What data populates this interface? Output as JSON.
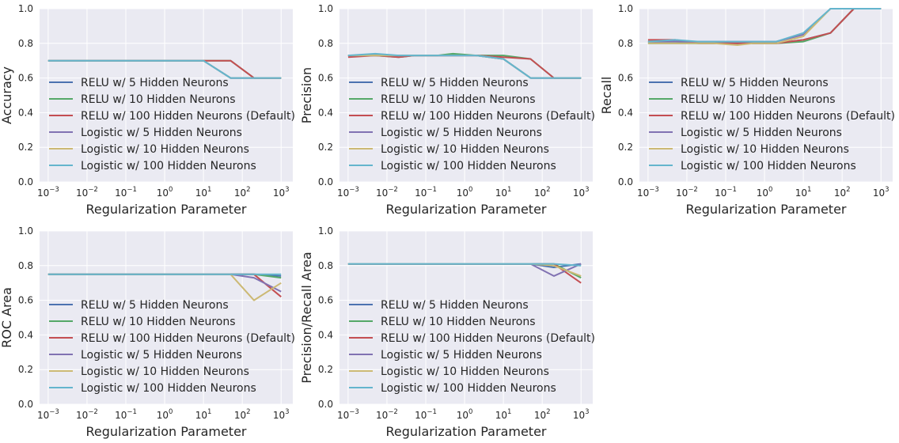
{
  "chart_data": [
    {
      "type": "line",
      "title": "",
      "xlabel": "Regularization Parameter",
      "ylabel": "Accuracy",
      "xscale": "log",
      "xlim": [
        0.0006,
        2000
      ],
      "ylim": [
        0,
        1
      ],
      "x_ticks": [
        "-3",
        "-2",
        "-1",
        "0",
        "1",
        "2",
        "3"
      ],
      "y_ticks": [
        "0.0",
        "0.2",
        "0.4",
        "0.6",
        "0.8",
        "1.0"
      ],
      "grid": true,
      "legend_position": "lower-left",
      "x": [
        0.001,
        0.005,
        0.02,
        0.05,
        0.2,
        0.5,
        2,
        10,
        50,
        200,
        1000
      ],
      "series": [
        {
          "name": "RELU w/ 5 Hidden Neurons",
          "color": "#4C72B0",
          "values": [
            0.7,
            0.7,
            0.7,
            0.7,
            0.7,
            0.7,
            0.7,
            0.7,
            0.6,
            0.6,
            0.6
          ]
        },
        {
          "name": "RELU w/ 10 Hidden Neurons",
          "color": "#55A868",
          "values": [
            0.7,
            0.7,
            0.7,
            0.7,
            0.7,
            0.7,
            0.7,
            0.7,
            0.7,
            0.6,
            0.6
          ]
        },
        {
          "name": "RELU w/ 100 Hidden Neurons (Default)",
          "color": "#C44E52",
          "values": [
            0.7,
            0.7,
            0.7,
            0.7,
            0.7,
            0.7,
            0.7,
            0.7,
            0.7,
            0.6,
            0.6
          ]
        },
        {
          "name": "Logistic w/ 5 Hidden Neurons",
          "color": "#8172B2",
          "values": [
            0.7,
            0.7,
            0.7,
            0.7,
            0.7,
            0.7,
            0.7,
            0.7,
            0.6,
            0.6,
            0.6
          ]
        },
        {
          "name": "Logistic w/ 10 Hidden Neurons",
          "color": "#CCB974",
          "values": [
            0.7,
            0.7,
            0.7,
            0.7,
            0.7,
            0.7,
            0.7,
            0.7,
            0.6,
            0.6,
            0.6
          ]
        },
        {
          "name": "Logistic w/ 100 Hidden Neurons",
          "color": "#64B5CD",
          "values": [
            0.7,
            0.7,
            0.7,
            0.7,
            0.7,
            0.7,
            0.7,
            0.7,
            0.6,
            0.6,
            0.6
          ]
        }
      ]
    },
    {
      "type": "line",
      "title": "",
      "xlabel": "Regularization Parameter",
      "ylabel": "Precision",
      "xscale": "log",
      "xlim": [
        0.0006,
        2000
      ],
      "ylim": [
        0,
        1
      ],
      "x_ticks": [
        "-3",
        "-2",
        "-1",
        "0",
        "1",
        "2",
        "3"
      ],
      "y_ticks": [
        "0.0",
        "0.2",
        "0.4",
        "0.6",
        "0.8",
        "1.0"
      ],
      "grid": true,
      "legend_position": "lower-left",
      "x": [
        0.001,
        0.005,
        0.02,
        0.05,
        0.2,
        0.5,
        2,
        10,
        50,
        200,
        1000
      ],
      "series": [
        {
          "name": "RELU w/ 5 Hidden Neurons",
          "color": "#4C72B0",
          "values": [
            0.73,
            0.73,
            0.73,
            0.73,
            0.73,
            0.73,
            0.73,
            0.71,
            0.6,
            0.6,
            0.6
          ]
        },
        {
          "name": "RELU w/ 10 Hidden Neurons",
          "color": "#55A868",
          "values": [
            0.73,
            0.73,
            0.72,
            0.73,
            0.73,
            0.74,
            0.73,
            0.73,
            0.71,
            0.6,
            0.6
          ]
        },
        {
          "name": "RELU w/ 100 Hidden Neurons (Default)",
          "color": "#C44E52",
          "values": [
            0.72,
            0.73,
            0.72,
            0.73,
            0.73,
            0.73,
            0.73,
            0.72,
            0.71,
            0.6,
            0.6
          ]
        },
        {
          "name": "Logistic w/ 5 Hidden Neurons",
          "color": "#8172B2",
          "values": [
            0.73,
            0.73,
            0.73,
            0.73,
            0.73,
            0.73,
            0.73,
            0.71,
            0.6,
            0.6,
            0.6
          ]
        },
        {
          "name": "Logistic w/ 10 Hidden Neurons",
          "color": "#CCB974",
          "values": [
            0.73,
            0.73,
            0.73,
            0.73,
            0.73,
            0.73,
            0.73,
            0.71,
            0.6,
            0.6,
            0.6
          ]
        },
        {
          "name": "Logistic w/ 100 Hidden Neurons",
          "color": "#64B5CD",
          "values": [
            0.73,
            0.74,
            0.73,
            0.73,
            0.73,
            0.73,
            0.73,
            0.71,
            0.6,
            0.6,
            0.6
          ]
        }
      ]
    },
    {
      "type": "line",
      "title": "",
      "xlabel": "Regularization Parameter",
      "ylabel": "Recall",
      "xscale": "log",
      "xlim": [
        0.0006,
        2000
      ],
      "ylim": [
        0,
        1
      ],
      "x_ticks": [
        "-3",
        "-2",
        "-1",
        "0",
        "1",
        "2",
        "3"
      ],
      "y_ticks": [
        "0.0",
        "0.2",
        "0.4",
        "0.6",
        "0.8",
        "1.0"
      ],
      "grid": true,
      "legend_position": "lower-left",
      "x": [
        0.001,
        0.005,
        0.02,
        0.05,
        0.2,
        0.5,
        2,
        10,
        50,
        200,
        1000
      ],
      "series": [
        {
          "name": "RELU w/ 5 Hidden Neurons",
          "color": "#4C72B0",
          "values": [
            0.81,
            0.81,
            0.8,
            0.8,
            0.8,
            0.8,
            0.8,
            0.82,
            0.86,
            1.0,
            1.0
          ]
        },
        {
          "name": "RELU w/ 10 Hidden Neurons",
          "color": "#55A868",
          "values": [
            0.8,
            0.8,
            0.8,
            0.8,
            0.8,
            0.8,
            0.8,
            0.81,
            0.86,
            1.0,
            1.0
          ]
        },
        {
          "name": "RELU w/ 100 Hidden Neurons (Default)",
          "color": "#C44E52",
          "values": [
            0.82,
            0.82,
            0.8,
            0.8,
            0.8,
            0.8,
            0.8,
            0.82,
            0.86,
            1.0,
            1.0
          ]
        },
        {
          "name": "Logistic w/ 5 Hidden Neurons",
          "color": "#8172B2",
          "values": [
            0.81,
            0.81,
            0.81,
            0.81,
            0.81,
            0.81,
            0.81,
            0.85,
            1.0,
            1.0,
            1.0
          ]
        },
        {
          "name": "Logistic w/ 10 Hidden Neurons",
          "color": "#CCB974",
          "values": [
            0.8,
            0.8,
            0.8,
            0.8,
            0.79,
            0.8,
            0.8,
            0.84,
            1.0,
            1.0,
            1.0
          ]
        },
        {
          "name": "Logistic w/ 100 Hidden Neurons",
          "color": "#64B5CD",
          "values": [
            0.81,
            0.82,
            0.81,
            0.81,
            0.81,
            0.81,
            0.81,
            0.86,
            1.0,
            1.0,
            1.0
          ]
        }
      ]
    },
    {
      "type": "line",
      "title": "",
      "xlabel": "Regularization Parameter",
      "ylabel": "ROC Area",
      "xscale": "log",
      "xlim": [
        0.0006,
        2000
      ],
      "ylim": [
        0,
        1
      ],
      "x_ticks": [
        "-3",
        "-2",
        "-1",
        "0",
        "1",
        "2",
        "3"
      ],
      "y_ticks": [
        "0.0",
        "0.2",
        "0.4",
        "0.6",
        "0.8",
        "1.0"
      ],
      "grid": true,
      "legend_position": "lower-left",
      "x": [
        0.001,
        0.005,
        0.02,
        0.05,
        0.2,
        0.5,
        2,
        10,
        50,
        200,
        1000
      ],
      "series": [
        {
          "name": "RELU w/ 5 Hidden Neurons",
          "color": "#4C72B0",
          "values": [
            0.75,
            0.75,
            0.75,
            0.75,
            0.75,
            0.75,
            0.75,
            0.75,
            0.75,
            0.75,
            0.74
          ]
        },
        {
          "name": "RELU w/ 10 Hidden Neurons",
          "color": "#55A868",
          "values": [
            0.75,
            0.75,
            0.75,
            0.75,
            0.75,
            0.75,
            0.75,
            0.75,
            0.75,
            0.75,
            0.73
          ]
        },
        {
          "name": "RELU w/ 100 Hidden Neurons (Default)",
          "color": "#C44E52",
          "values": [
            0.75,
            0.75,
            0.75,
            0.75,
            0.75,
            0.75,
            0.75,
            0.75,
            0.75,
            0.75,
            0.62
          ]
        },
        {
          "name": "Logistic w/ 5 Hidden Neurons",
          "color": "#8172B2",
          "values": [
            0.75,
            0.75,
            0.75,
            0.75,
            0.75,
            0.75,
            0.75,
            0.75,
            0.75,
            0.73,
            0.65
          ]
        },
        {
          "name": "Logistic w/ 10 Hidden Neurons",
          "color": "#CCB974",
          "values": [
            0.75,
            0.75,
            0.75,
            0.75,
            0.75,
            0.75,
            0.75,
            0.75,
            0.75,
            0.6,
            0.7
          ]
        },
        {
          "name": "Logistic w/ 100 Hidden Neurons",
          "color": "#64B5CD",
          "values": [
            0.75,
            0.75,
            0.75,
            0.75,
            0.75,
            0.75,
            0.75,
            0.75,
            0.75,
            0.75,
            0.75
          ]
        }
      ]
    },
    {
      "type": "line",
      "title": "",
      "xlabel": "Regularization Parameter",
      "ylabel": "Precision/Recall Area",
      "xscale": "log",
      "xlim": [
        0.0006,
        2000
      ],
      "ylim": [
        0,
        1
      ],
      "x_ticks": [
        "-3",
        "-2",
        "-1",
        "0",
        "1",
        "2",
        "3"
      ],
      "y_ticks": [
        "0.0",
        "0.2",
        "0.4",
        "0.6",
        "0.8",
        "1.0"
      ],
      "grid": true,
      "legend_position": "lower-left",
      "x": [
        0.001,
        0.005,
        0.02,
        0.05,
        0.2,
        0.5,
        2,
        10,
        50,
        200,
        1000
      ],
      "series": [
        {
          "name": "RELU w/ 5 Hidden Neurons",
          "color": "#4C72B0",
          "values": [
            0.81,
            0.81,
            0.81,
            0.81,
            0.81,
            0.81,
            0.81,
            0.81,
            0.81,
            0.79,
            0.81
          ]
        },
        {
          "name": "RELU w/ 10 Hidden Neurons",
          "color": "#55A868",
          "values": [
            0.81,
            0.81,
            0.81,
            0.81,
            0.81,
            0.81,
            0.81,
            0.81,
            0.81,
            0.81,
            0.73
          ]
        },
        {
          "name": "RELU w/ 100 Hidden Neurons (Default)",
          "color": "#C44E52",
          "values": [
            0.81,
            0.81,
            0.81,
            0.81,
            0.81,
            0.81,
            0.81,
            0.81,
            0.81,
            0.81,
            0.7
          ]
        },
        {
          "name": "Logistic w/ 5 Hidden Neurons",
          "color": "#8172B2",
          "values": [
            0.81,
            0.81,
            0.81,
            0.81,
            0.81,
            0.81,
            0.81,
            0.81,
            0.81,
            0.74,
            0.81
          ]
        },
        {
          "name": "Logistic w/ 10 Hidden Neurons",
          "color": "#CCB974",
          "values": [
            0.81,
            0.81,
            0.81,
            0.81,
            0.81,
            0.81,
            0.81,
            0.81,
            0.81,
            0.8,
            0.74
          ]
        },
        {
          "name": "Logistic w/ 100 Hidden Neurons",
          "color": "#64B5CD",
          "values": [
            0.81,
            0.81,
            0.81,
            0.81,
            0.81,
            0.81,
            0.81,
            0.81,
            0.81,
            0.81,
            0.8
          ]
        }
      ]
    }
  ]
}
